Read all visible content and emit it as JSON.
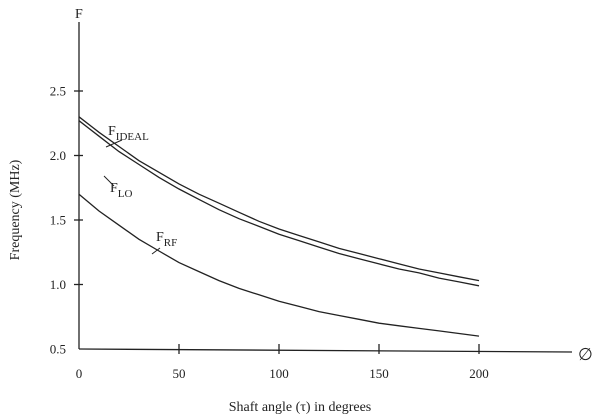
{
  "chart_data": {
    "type": "line",
    "xlabel": "Shaft angle (τ) in degrees",
    "ylabel": "Frequency (MHz)",
    "y_axis_symbol": "F",
    "x_axis_symbol": "∅",
    "xlim": [
      0,
      245
    ],
    "ylim": [
      0.5,
      3.0
    ],
    "x_ticks": [
      "0",
      "50",
      "100",
      "150",
      "200"
    ],
    "y_ticks": [
      "0.5",
      "1.0",
      "1.5",
      "2.0",
      "2.5"
    ],
    "grid": false,
    "x": [
      0,
      10,
      20,
      30,
      40,
      50,
      60,
      70,
      80,
      90,
      100,
      110,
      120,
      130,
      140,
      150,
      160,
      170,
      180,
      190,
      200
    ],
    "series": [
      {
        "base": "F",
        "sub": "IDEAL",
        "values": [
          2.3,
          2.18,
          2.07,
          1.96,
          1.87,
          1.78,
          1.7,
          1.63,
          1.56,
          1.49,
          1.43,
          1.38,
          1.33,
          1.28,
          1.24,
          1.2,
          1.16,
          1.12,
          1.09,
          1.06,
          1.03
        ]
      },
      {
        "base": "F",
        "sub": "LO",
        "values": [
          2.27,
          2.15,
          2.03,
          1.93,
          1.83,
          1.74,
          1.66,
          1.58,
          1.51,
          1.45,
          1.39,
          1.34,
          1.29,
          1.24,
          1.2,
          1.16,
          1.12,
          1.09,
          1.05,
          1.02,
          0.99
        ]
      },
      {
        "base": "F",
        "sub": "RF",
        "values": [
          1.7,
          1.57,
          1.46,
          1.35,
          1.26,
          1.17,
          1.1,
          1.03,
          0.97,
          0.92,
          0.87,
          0.83,
          0.79,
          0.76,
          0.73,
          0.7,
          0.68,
          0.66,
          0.64,
          0.62,
          0.6
        ]
      }
    ]
  }
}
